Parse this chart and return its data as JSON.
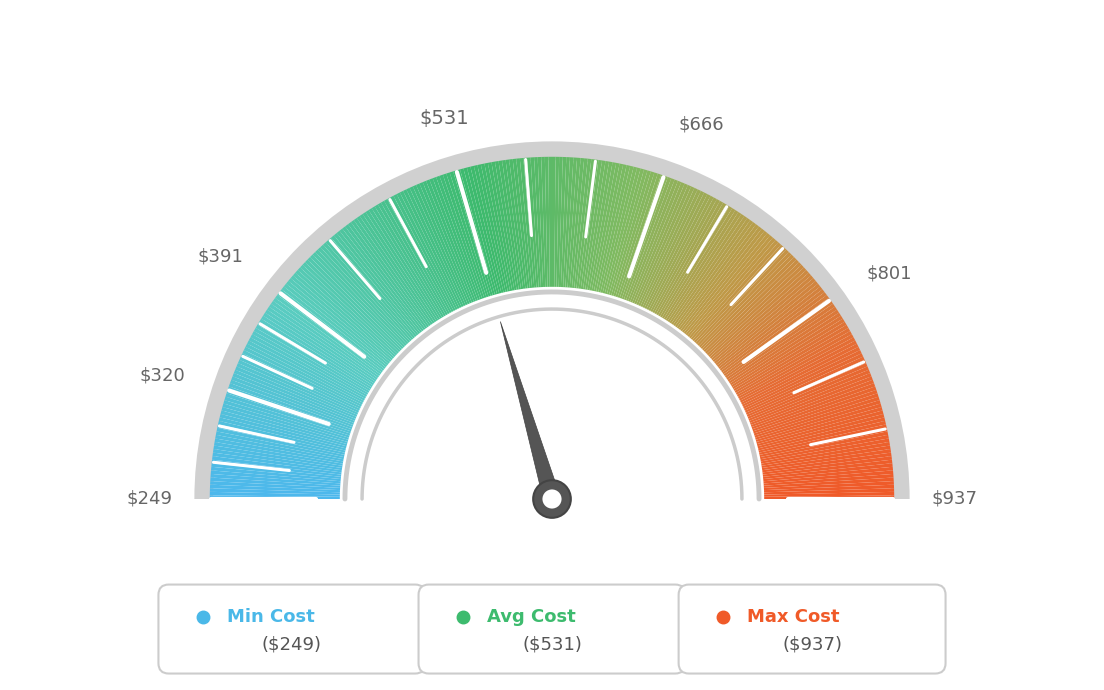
{
  "min_val": 249,
  "max_val": 937,
  "avg_val": 531,
  "needle_value": 531,
  "tick_labels": [
    "$249",
    "$320",
    "$391",
    "$531",
    "$666",
    "$801",
    "$937"
  ],
  "tick_values": [
    249,
    320,
    391,
    531,
    666,
    801,
    937
  ],
  "legend": [
    {
      "label": "Min Cost",
      "value": "($249)",
      "color": "#4ab8e8"
    },
    {
      "label": "Avg Cost",
      "value": "($531)",
      "color": "#3dbb6e"
    },
    {
      "label": "Max Cost",
      "value": "($937)",
      "color": "#f05a28"
    }
  ],
  "color_stops": [
    [
      0.0,
      [
        0.3,
        0.72,
        0.93
      ]
    ],
    [
      0.2,
      [
        0.35,
        0.8,
        0.75
      ]
    ],
    [
      0.42,
      [
        0.24,
        0.73,
        0.43
      ]
    ],
    [
      0.58,
      [
        0.5,
        0.73,
        0.38
      ]
    ],
    [
      0.72,
      [
        0.75,
        0.6,
        0.28
      ]
    ],
    [
      0.85,
      [
        0.9,
        0.42,
        0.2
      ]
    ],
    [
      1.0,
      [
        0.94,
        0.35,
        0.16
      ]
    ]
  ],
  "bg_color": "#ffffff",
  "gauge_text_color": "#666666",
  "needle_color": "#555555",
  "ring_color": "#cccccc"
}
